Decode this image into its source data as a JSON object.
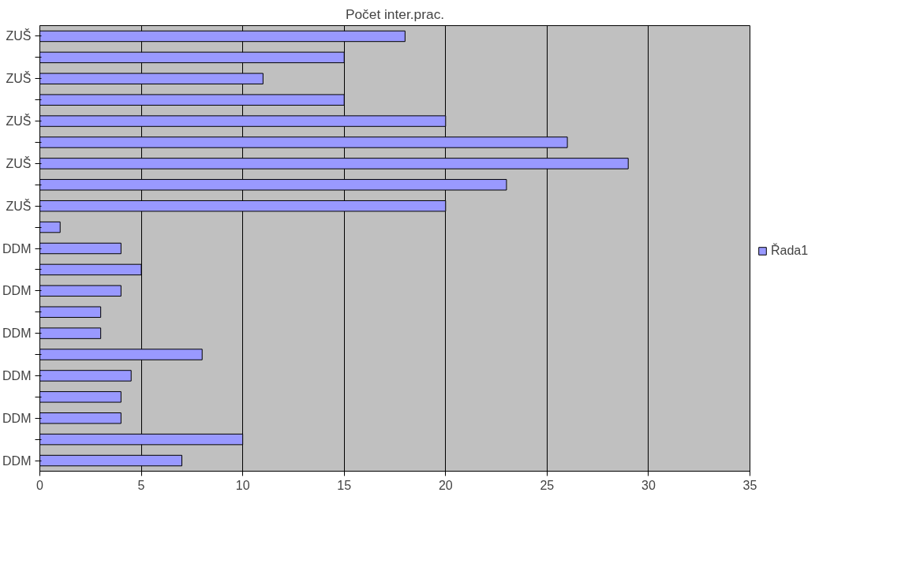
{
  "chart_data": {
    "type": "bar",
    "orientation": "horizontal",
    "title": "Počet inter.prac.",
    "categories": [
      "ZUŠ",
      null,
      "ZUŠ",
      null,
      "ZUŠ",
      null,
      "ZUŠ",
      null,
      "ZUŠ",
      null,
      "DDM",
      null,
      "DDM",
      null,
      "DDM",
      null,
      "DDM",
      null,
      "DDM",
      null,
      "DDM"
    ],
    "series": [
      {
        "name": "Řada1",
        "color": "#9999ff",
        "values": [
          18,
          15,
          11,
          15,
          20,
          26,
          29,
          23,
          20,
          1,
          4,
          5,
          4,
          3,
          3,
          8,
          4.5,
          4,
          4,
          10,
          7
        ]
      }
    ],
    "xlim": [
      0,
      35
    ],
    "xticks": [
      0,
      5,
      10,
      15,
      20,
      25,
      30,
      35
    ],
    "grid": "x",
    "legend": "right"
  }
}
